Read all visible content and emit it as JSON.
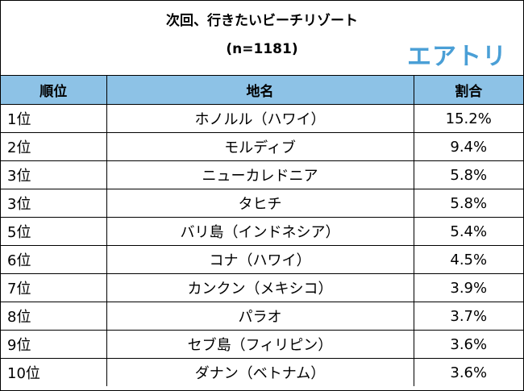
{
  "title": "次回、行きたいビーチリゾート",
  "subtitle": "(n=1181)",
  "logo_text": "エアトリ",
  "colors": {
    "header_bg": "#8dc2e6",
    "logo": "#4a9fd6"
  },
  "columns": [
    "順位",
    "地名",
    "割合"
  ],
  "rows": [
    {
      "rank": "1位",
      "name": "ホノルル（ハワイ）",
      "share": "15.2%"
    },
    {
      "rank": "2位",
      "name": "モルディブ",
      "share": "9.4%"
    },
    {
      "rank": "3位",
      "name": "ニューカレドニア",
      "share": "5.8%"
    },
    {
      "rank": "3位",
      "name": "タヒチ",
      "share": "5.8%"
    },
    {
      "rank": "5位",
      "name": "バリ島（インドネシア）",
      "share": "5.4%"
    },
    {
      "rank": "6位",
      "name": "コナ（ハワイ）",
      "share": "4.5%"
    },
    {
      "rank": "7位",
      "name": "カンクン（メキシコ）",
      "share": "3.9%"
    },
    {
      "rank": "8位",
      "name": "パラオ",
      "share": "3.7%"
    },
    {
      "rank": "9位",
      "name": "セブ島（フィリピン）",
      "share": "3.6%"
    },
    {
      "rank": "10位",
      "name": "ダナン（ベトナム）",
      "share": "3.6%"
    }
  ]
}
